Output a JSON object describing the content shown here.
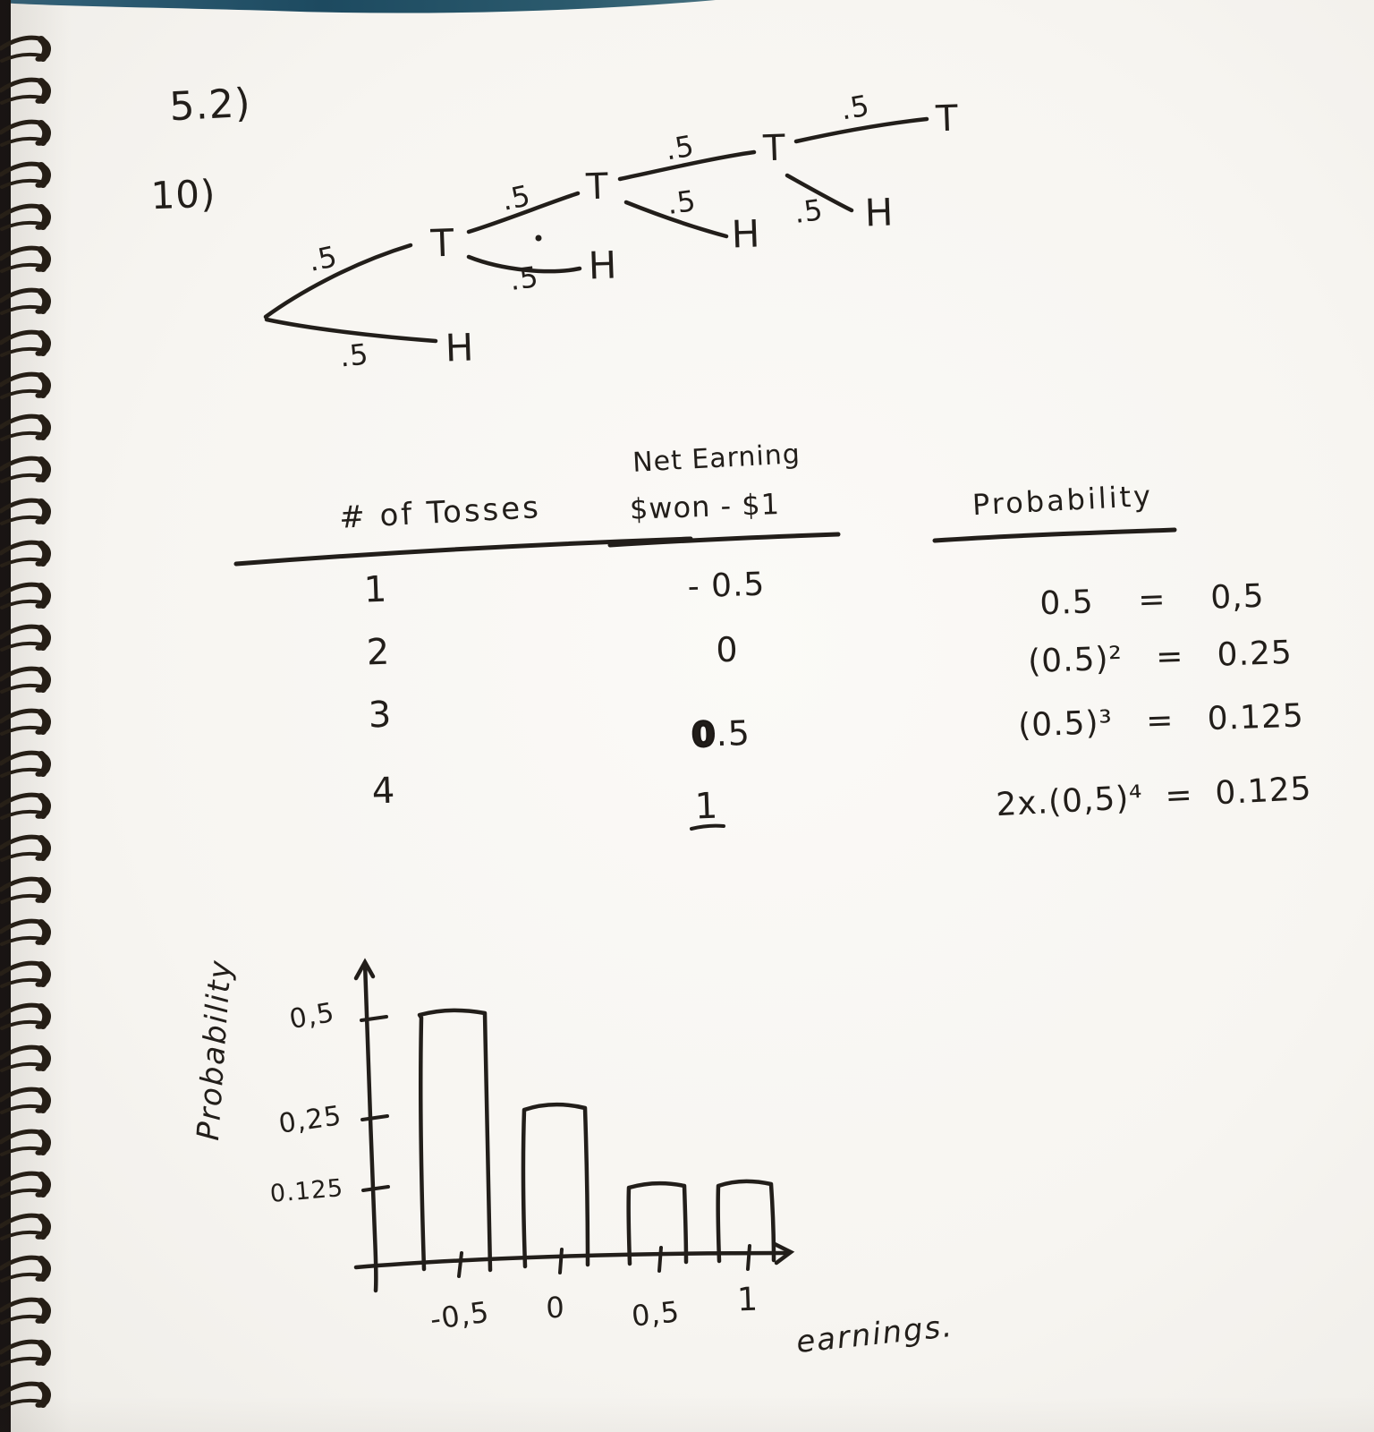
{
  "page": {
    "course_section": "5.2)",
    "problem_number": "10)"
  },
  "tree": {
    "branches": [
      {
        "to": "T",
        "p": ".5"
      },
      {
        "to": "H",
        "p": ".5"
      },
      {
        "to": "T",
        "p": ".5"
      },
      {
        "to": "H",
        "p": ".5"
      },
      {
        "to": "T",
        "p": ".5"
      },
      {
        "to": "H",
        "p": ".5"
      },
      {
        "to": "T",
        "p": ".5"
      },
      {
        "to": "H",
        "p": ".5"
      }
    ]
  },
  "table": {
    "col1_header": "# of Tosses",
    "col2_header_line1": "Net Earning",
    "col2_header_line2": "$won - $1",
    "col3_header": "Probability",
    "rows": [
      {
        "tosses": "1",
        "net": "- 0.5",
        "prob": "0.5    =    0,5"
      },
      {
        "tosses": "2",
        "net": "0",
        "prob": "(0.5)²   =   0.25"
      },
      {
        "tosses": "3",
        "net_zero": "0",
        "net_rest": ".5",
        "prob": "(0.5)³   =   0.125"
      },
      {
        "tosses": "4",
        "net": "1",
        "prob": "2x.(0,5)⁴  =  0.125"
      }
    ]
  },
  "chart": {
    "y_axis_label": "Probability",
    "y_ticks": [
      "0,5",
      "0,25",
      "0.125"
    ],
    "x_ticks": [
      "-0,5",
      "0",
      "0,5",
      "1"
    ],
    "x_axis_label": "earnings."
  },
  "chart_data": {
    "type": "bar",
    "title": "",
    "categories": [
      "-0.5",
      "0",
      "0.5",
      "1"
    ],
    "values": [
      0.5,
      0.25,
      0.125,
      0.125
    ],
    "xlabel": "earnings",
    "ylabel": "Probability",
    "y_tick_values": [
      0.5,
      0.25,
      0.125
    ],
    "ylim": [
      0,
      0.55
    ],
    "grid": false,
    "style": "hand-drawn outlined bars, no fill"
  },
  "colors": {
    "ink": "#221e1a",
    "paper": "#faf9f6",
    "notebook_edge_teal": "#2b5a6d",
    "binding_dark": "#17120e"
  }
}
